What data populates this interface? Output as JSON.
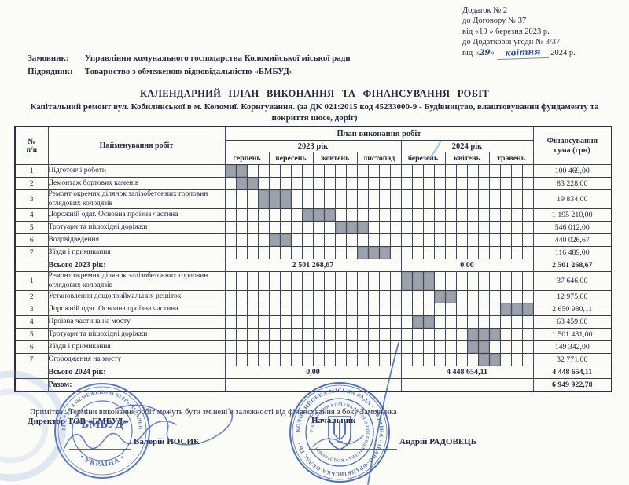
{
  "appendix": {
    "line1": "Додаток № 2",
    "line2": "до Договору № 37",
    "line3": "від «10 » березня  2023 р.",
    "line4": "до Додаткової угоди № 3/37",
    "line5_prefix": "від «",
    "line5_day": "29",
    "line5_mid": "»",
    "line5_month": "квітня",
    "line5_suffix": "2024 р."
  },
  "parties": {
    "customer_label": "Замовник:",
    "customer": "Управління комунального господарства Коломийської міської ради",
    "contractor_label": "Підрядник:",
    "contractor": "Товариство з обмеженою відповідальністю «БМБУД»"
  },
  "title": "КАЛЕНДАРНИЙ ПЛАН ВИКОНАННЯ ТА ФІНАНСУВАННЯ РОБІТ",
  "subtitle": "Капітальний ремонт вул. Кобилянської в м. Коломиї. Коригування. (за ДК 021:2015 код 45233000-9 - Будівництво, влаштовування фундаменту та покриття шосе, доріг)",
  "table": {
    "header": {
      "no": "№\nп/п",
      "name": "Найменування робіт",
      "plan": "План виконання робіт",
      "fin": "Фінансування\nсума (грн)"
    },
    "years": [
      {
        "label": "2023 рік",
        "months": [
          "серпень",
          "вересень",
          "жовтень",
          "листопад"
        ]
      },
      {
        "label": "2024 рік",
        "months": [
          "березень",
          "квітень",
          "травень"
        ]
      }
    ],
    "weeks_per_month": 4,
    "sections": [
      {
        "rows": [
          {
            "no": "1",
            "name": "Підготовчі роботи",
            "weeks": [
              1,
              2
            ],
            "sum": "100 469,00"
          },
          {
            "no": "2",
            "name": "Демонтаж бортових каменів",
            "weeks": [
              2,
              3
            ],
            "sum": "83 228,00"
          },
          {
            "no": "3",
            "name": "Ремонт окремих ділянок залізобетонних горловин оглядових  колодязів",
            "weeks": [
              4,
              5,
              6
            ],
            "sum": "19 834,00"
          },
          {
            "no": "4",
            "name": "Дорожній одяг. Основна проїзна частина",
            "weeks": [
              8,
              9,
              10
            ],
            "sum": "1 195 210,00"
          },
          {
            "no": "5",
            "name": "Тротуари та пішохідні доріжки",
            "weeks": [
              11,
              12,
              13
            ],
            "sum": "546 012,00"
          },
          {
            "no": "6",
            "name": "Водовідведення",
            "weeks": [
              5,
              6
            ],
            "sum": "440 026,67"
          },
          {
            "no": "7",
            "name": "З'їзди і примикання",
            "weeks": [
              13,
              14,
              15
            ],
            "sum": "116 489,00"
          }
        ],
        "total": {
          "label": "Всього 2023 рік:",
          "y2023": "2 501 268,67",
          "y2024": "0.00",
          "sum": "2 501 268,67"
        }
      },
      {
        "rows": [
          {
            "no": "1",
            "name": "Ремонт окремих ділянок залізобетонних горловин оглядових  колодязів",
            "weeks": [
              17,
              18,
              19
            ],
            "sum": "37 646,00"
          },
          {
            "no": "2",
            "name": "Установлення дощоприймальних решіток",
            "weeks": [
              20,
              21
            ],
            "sum": "12 975,00"
          },
          {
            "no": "3",
            "name": "Дорожній одяг. Основна проїзна частина",
            "weeks": [
              26,
              27,
              28
            ],
            "sum": "2 650 980,11"
          },
          {
            "no": "4",
            "name": "Проїзна частина на мосту",
            "weeks": [
              18,
              19
            ],
            "sum": "63 459,00"
          },
          {
            "no": "5",
            "name": "Тротуари та пішохідні доріжки",
            "weeks": [
              23,
              24,
              25
            ],
            "sum": "1 501 481,00"
          },
          {
            "no": "6",
            "name": "З'їзди і примикання",
            "weeks": [
              23,
              24
            ],
            "sum": "149 342,00"
          },
          {
            "no": "7",
            "name": "Огородження на мосту",
            "weeks": [
              24,
              25
            ],
            "sum": "32 771,00"
          }
        ],
        "total": {
          "label": "Всього 2024 рік:",
          "y2023": "0,00",
          "y2024": "4 448 654,11",
          "sum": "4 448 654,11"
        }
      }
    ],
    "grand_total": {
      "label": "Разом:",
      "sum": "6 949 922,78"
    }
  },
  "note": "Примітка : Терміни виконання робіт можуть бути змінені в залежності від фінансування  з боку Замовника",
  "signatures": {
    "left_title": "Директор ТОВ «БМБУД»",
    "left_name": "Валерій НОСИК",
    "right_title": "Начальник",
    "right_name": "Андрій РАДОВЕЦЬ"
  },
  "stamps": {
    "left": {
      "top_arc": "ТОВАРИСТВО З ОБМЕЖЕНОЮ ВІДПОВІДАЛЬНІСТЮ",
      "bottom_arc": "• УКРАЇНА •",
      "center": "“БМБУД”"
    },
    "right": {
      "outer_arc": "КОЛОМИЙСЬКА МІСЬКА РАДА • УКРАЇНА • ІВАНО-ФРАНКІВСЬКА ОБЛАСТЬ •",
      "inner_arc": "УПРАВЛІННЯ КОМУНАЛЬНОГО ГОСПОДАРСТВА • КОД 31692820"
    }
  },
  "colors": {
    "ink": "#272b42",
    "stamp_blue": "#3157c1",
    "shade_gray": "#9ca1aa",
    "check_teal": "#86c8d8"
  }
}
